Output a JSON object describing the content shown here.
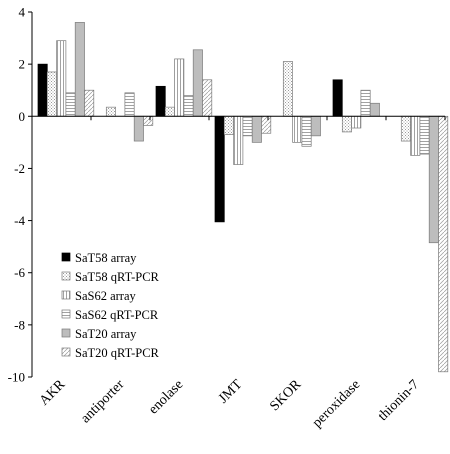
{
  "chart_data": {
    "type": "bar",
    "title": "",
    "xlabel": "",
    "ylabel": "",
    "ylim": [
      -10,
      4
    ],
    "yticks": [
      4,
      2,
      0,
      -2,
      -4,
      -6,
      -8,
      -10
    ],
    "grid": false,
    "legend_position": "bottom-left",
    "categories": [
      "AKR",
      "antiporter",
      "enolase",
      "JMT",
      "SKOR",
      "peroxidase",
      "thionin-7"
    ],
    "series": [
      {
        "name": "SaT58 array",
        "values": [
          2.0,
          0,
          1.15,
          -4.05,
          0,
          1.4,
          0
        ],
        "fill": "solid-black"
      },
      {
        "name": "SaT58 qRT-PCR",
        "values": [
          1.7,
          0.35,
          0.35,
          -0.7,
          2.1,
          -0.6,
          -0.95
        ],
        "fill": "light-hatch"
      },
      {
        "name": "SaS62 array",
        "values": [
          2.9,
          0,
          2.2,
          -1.85,
          -1.0,
          -0.45,
          -1.5
        ],
        "fill": "vertical-hatch"
      },
      {
        "name": "SaS62 qRT-PCR",
        "values": [
          0.9,
          0.9,
          0.8,
          -0.75,
          -1.15,
          1.0,
          -1.45
        ],
        "fill": "horizontal-hatch"
      },
      {
        "name": "SaT20 array",
        "values": [
          3.6,
          -0.95,
          2.55,
          -1.0,
          -0.75,
          0.5,
          -4.85
        ],
        "fill": "gray"
      },
      {
        "name": "SaT20 qRT-PCR",
        "values": [
          1.0,
          -0.35,
          1.4,
          -0.65,
          0,
          0,
          -9.8
        ],
        "fill": "diagonal-hatch"
      }
    ]
  }
}
